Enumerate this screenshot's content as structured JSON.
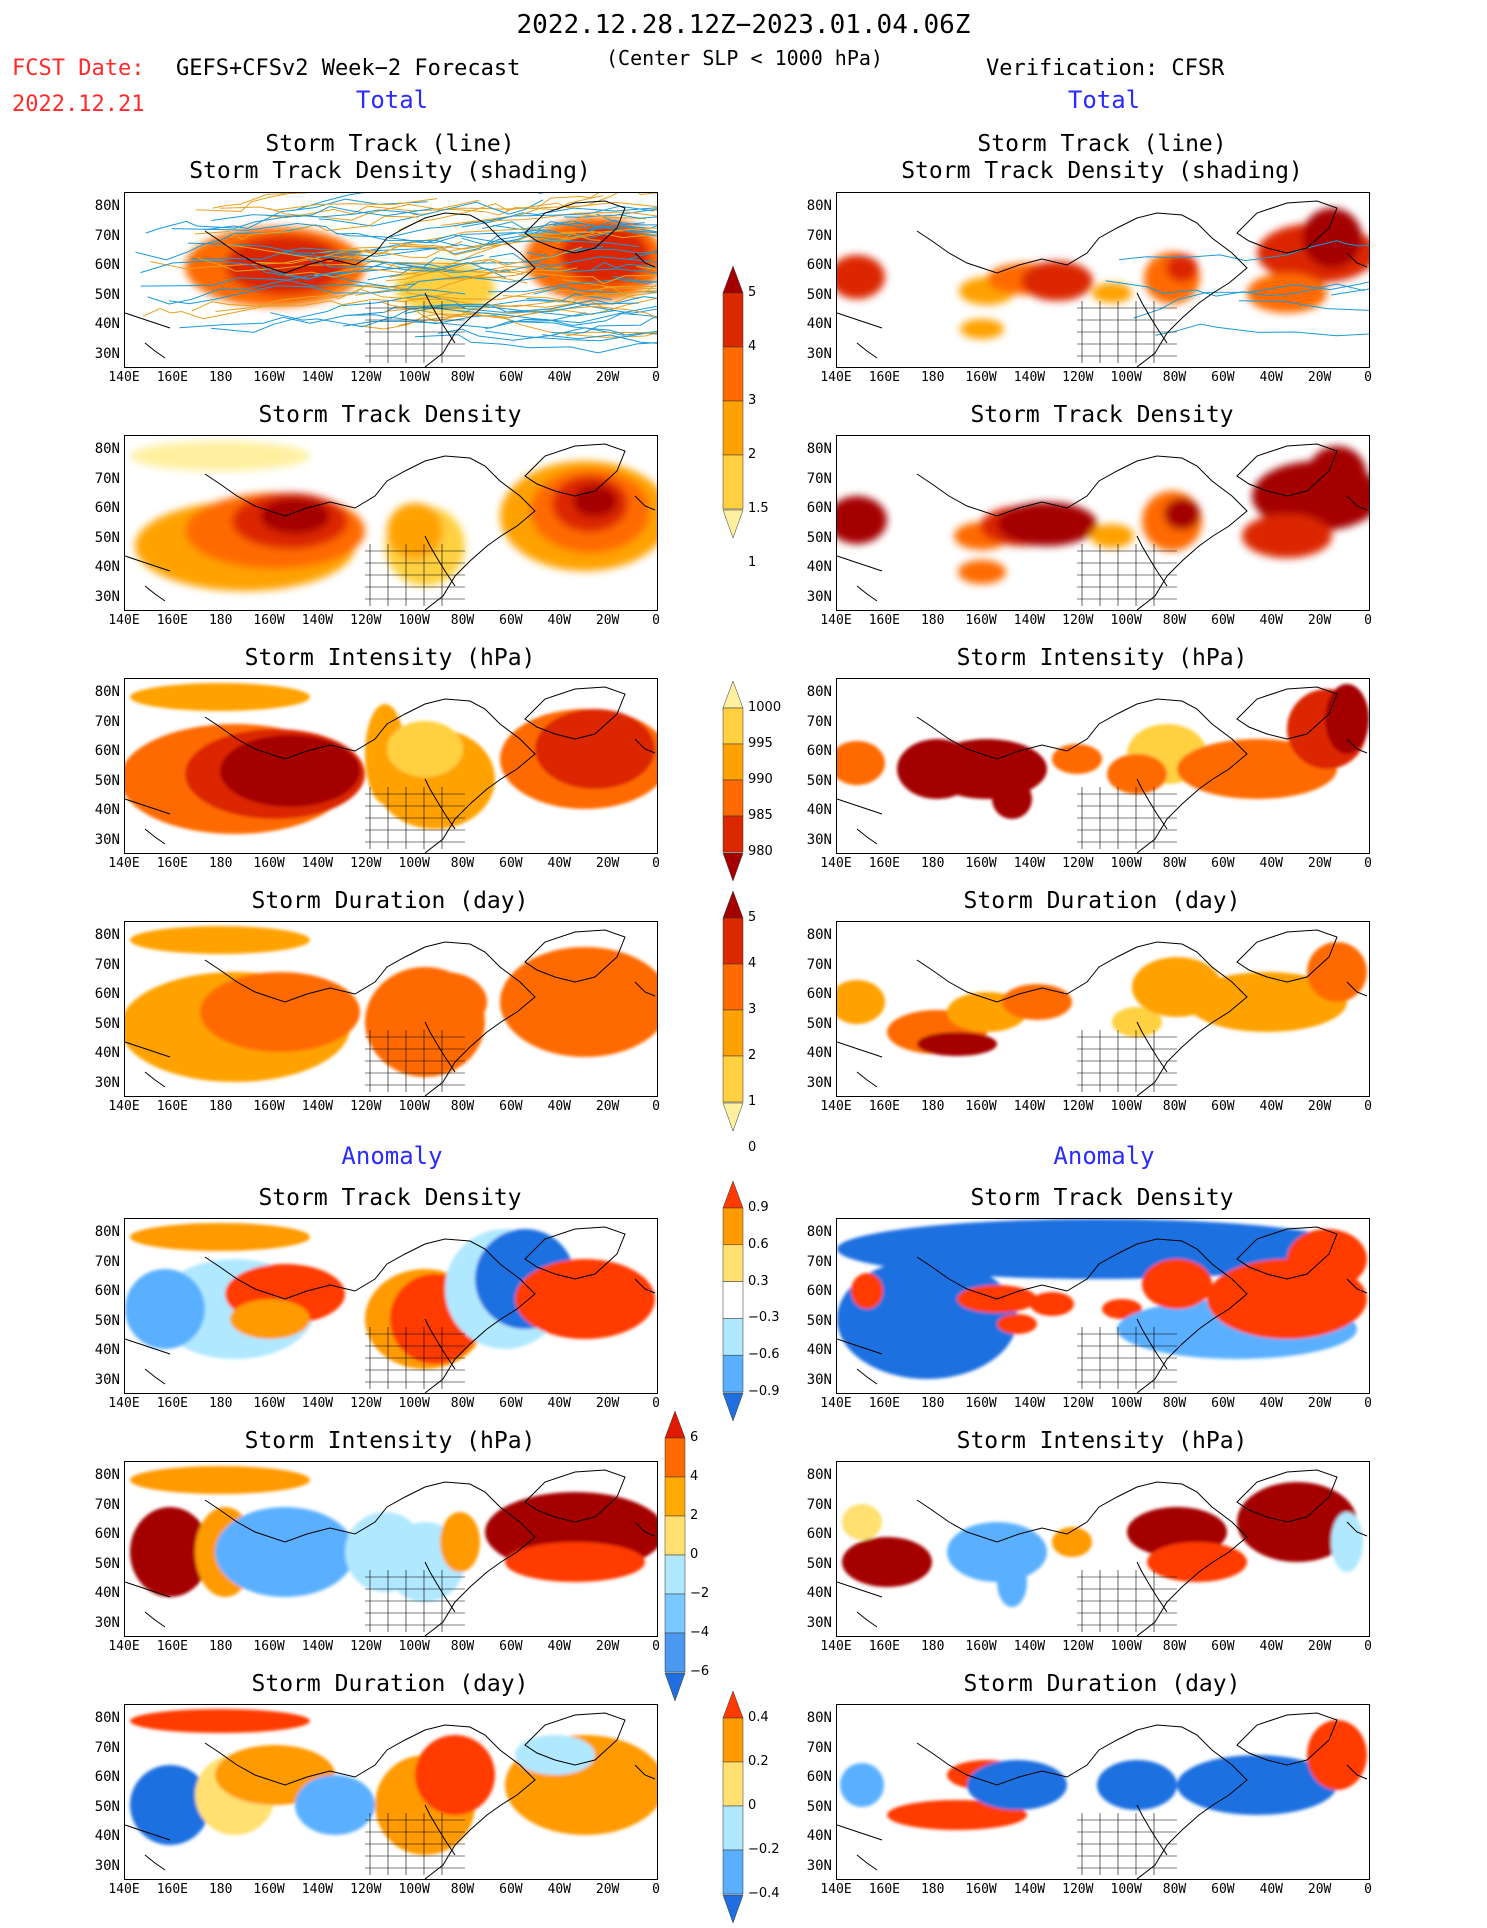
{
  "header": {
    "title": "2022.12.28.12Z−2023.01.04.06Z",
    "fcst_label": "FCST Date:",
    "fcst_model": "GEFS+CFSv2 Week−2 Forecast",
    "center_note": "(Center SLP < 1000 hPa)",
    "verification": "Verification: CFSR",
    "fcst_date": "2022.12.21"
  },
  "sections": {
    "total_left": "Total",
    "total_right": "Total",
    "anomaly_left": "Anomaly",
    "anomaly_right": "Anomaly"
  },
  "panel_titles": {
    "track_line": "Storm Track (line)",
    "track_density_shading": "Storm Track Density (shading)",
    "track_density": "Storm Track Density",
    "intensity": "Storm Intensity (hPa)",
    "duration": "Storm Duration (day)"
  },
  "axes": {
    "lat_labels": [
      "80N",
      "70N",
      "60N",
      "50N",
      "40N",
      "30N"
    ],
    "lon_labels": [
      "140E",
      "160E",
      "180",
      "160W",
      "140W",
      "120W",
      "100W",
      "80W",
      "60W",
      "40W",
      "20W",
      "0"
    ]
  },
  "colorbars": {
    "density": {
      "labels": [
        "5",
        "4",
        "3",
        "2",
        "1.5",
        "1"
      ],
      "colors": [
        "#a50000",
        "#dc2800",
        "#ff6a00",
        "#ffa200",
        "#ffd040",
        "#fff0a0"
      ]
    },
    "intensity": {
      "labels": [
        "1000",
        "995",
        "990",
        "985",
        "980"
      ],
      "colors": [
        "#fff0a0",
        "#ffd040",
        "#ffa200",
        "#ff6a00",
        "#dc2800",
        "#a50000"
      ]
    },
    "duration": {
      "labels": [
        "5",
        "4",
        "3",
        "2",
        "1",
        "0"
      ],
      "colors": [
        "#a50000",
        "#dc2800",
        "#ff6a00",
        "#ffa200",
        "#ffd040",
        "#fff0a0"
      ]
    },
    "anom_density": {
      "labels": [
        "0.9",
        "0.6",
        "0.3",
        "−0.3",
        "−0.6",
        "−0.9"
      ],
      "colors": [
        "#ff3a00",
        "#ff9a00",
        "#ffe070",
        "#ffffff",
        "#b0e8ff",
        "#5ab0ff",
        "#1f6fe0"
      ]
    },
    "anom_intensity": {
      "labels": [
        "6",
        "4",
        "2",
        "0",
        "−2",
        "−4",
        "−6"
      ],
      "colors": [
        "#e01a00",
        "#ff6a00",
        "#ffaa00",
        "#ffe070",
        "#b0e8ff",
        "#7ac8ff",
        "#4a98f0",
        "#1f6fe0"
      ]
    },
    "anom_duration": {
      "labels": [
        "0.4",
        "0.2",
        "0",
        "−0.2",
        "−0.4"
      ],
      "colors": [
        "#ff3a00",
        "#ff9a00",
        "#ffe070",
        "#b0e8ff",
        "#5ab0ff",
        "#1f6fe0"
      ]
    }
  }
}
